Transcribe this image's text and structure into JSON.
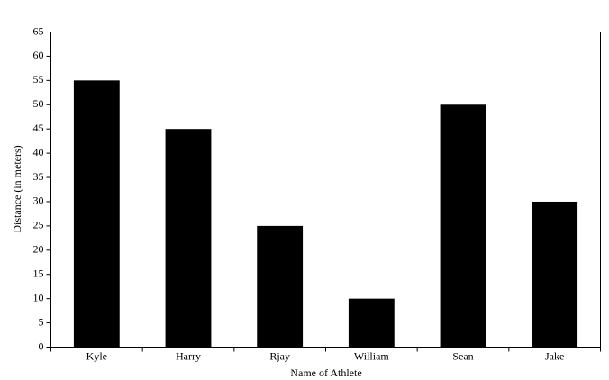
{
  "chart_data": {
    "type": "bar",
    "x_label": "Name of Athlete",
    "y_label": "Distance (in meters)",
    "categories": [
      "Kyle",
      "Harry",
      "Rjay",
      "William",
      "Sean",
      "Jake"
    ],
    "values": [
      55,
      45,
      25,
      10,
      50,
      30
    ],
    "color": "#000000",
    "ylim": [
      0,
      65
    ],
    "yticks": [
      0,
      5,
      10,
      15,
      20,
      25,
      30,
      35,
      40,
      45,
      50,
      55,
      60,
      65
    ],
    "grid": false
  }
}
